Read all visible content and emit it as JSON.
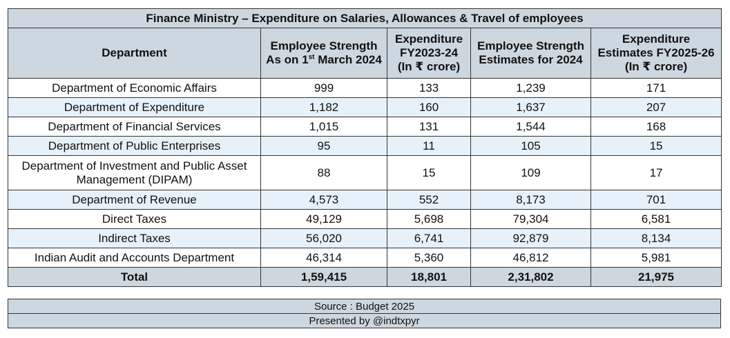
{
  "table": {
    "title": "Finance Ministry – Expenditure on Salaries, Allowances & Travel of employees",
    "headers": {
      "department": "Department",
      "strength_2024_line1": "Employee Strength",
      "strength_2024_line2_pre": "As on 1",
      "strength_2024_line2_sup": "st",
      "strength_2024_line2_post": " March 2024",
      "exp_2324_line1": "Expenditure",
      "exp_2324_line2": "FY2023-24",
      "exp_2324_line3": "(In ₹ crore)",
      "strength_est_line1": "Employee Strength",
      "strength_est_line2": "Estimates for 2024",
      "exp_est_line1": "Expenditure",
      "exp_est_line2": "Estimates FY2025-26",
      "exp_est_line3": "(In ₹ crore)"
    },
    "rows": [
      {
        "dept": "Department of Economic Affairs",
        "strength": "999",
        "exp": "133",
        "strength_est": "1,239",
        "exp_est": "171"
      },
      {
        "dept": "Department of Expenditure",
        "strength": "1,182",
        "exp": "160",
        "strength_est": "1,637",
        "exp_est": "207"
      },
      {
        "dept": "Department of Financial Services",
        "strength": "1,015",
        "exp": "131",
        "strength_est": "1,544",
        "exp_est": "168"
      },
      {
        "dept": "Department of Public Enterprises",
        "strength": "95",
        "exp": "11",
        "strength_est": "105",
        "exp_est": "15"
      },
      {
        "dept_line1": "Department of Investment and Public Asset",
        "dept_line2": "Management (DIPAM)",
        "strength": "88",
        "exp": "15",
        "strength_est": "109",
        "exp_est": "17"
      },
      {
        "dept": "Department of Revenue",
        "strength": "4,573",
        "exp": "552",
        "strength_est": "8,173",
        "exp_est": "701"
      },
      {
        "dept": "Direct Taxes",
        "strength": "49,129",
        "exp": "5,698",
        "strength_est": "79,304",
        "exp_est": "6,581"
      },
      {
        "dept": "Indirect Taxes",
        "strength": "56,020",
        "exp": "6,741",
        "strength_est": "92,879",
        "exp_est": "8,134"
      },
      {
        "dept": "Indian Audit and Accounts Department",
        "strength": "46,314",
        "exp": "5,360",
        "strength_est": "46,812",
        "exp_est": "5,981"
      }
    ],
    "total": {
      "label": "Total",
      "strength": "1,59,415",
      "exp": "18,801",
      "strength_est": "2,31,802",
      "exp_est": "21,975"
    }
  },
  "footer": {
    "source": "Source : Budget 2025",
    "presented_by": "Presented by @indtxpyr"
  }
}
